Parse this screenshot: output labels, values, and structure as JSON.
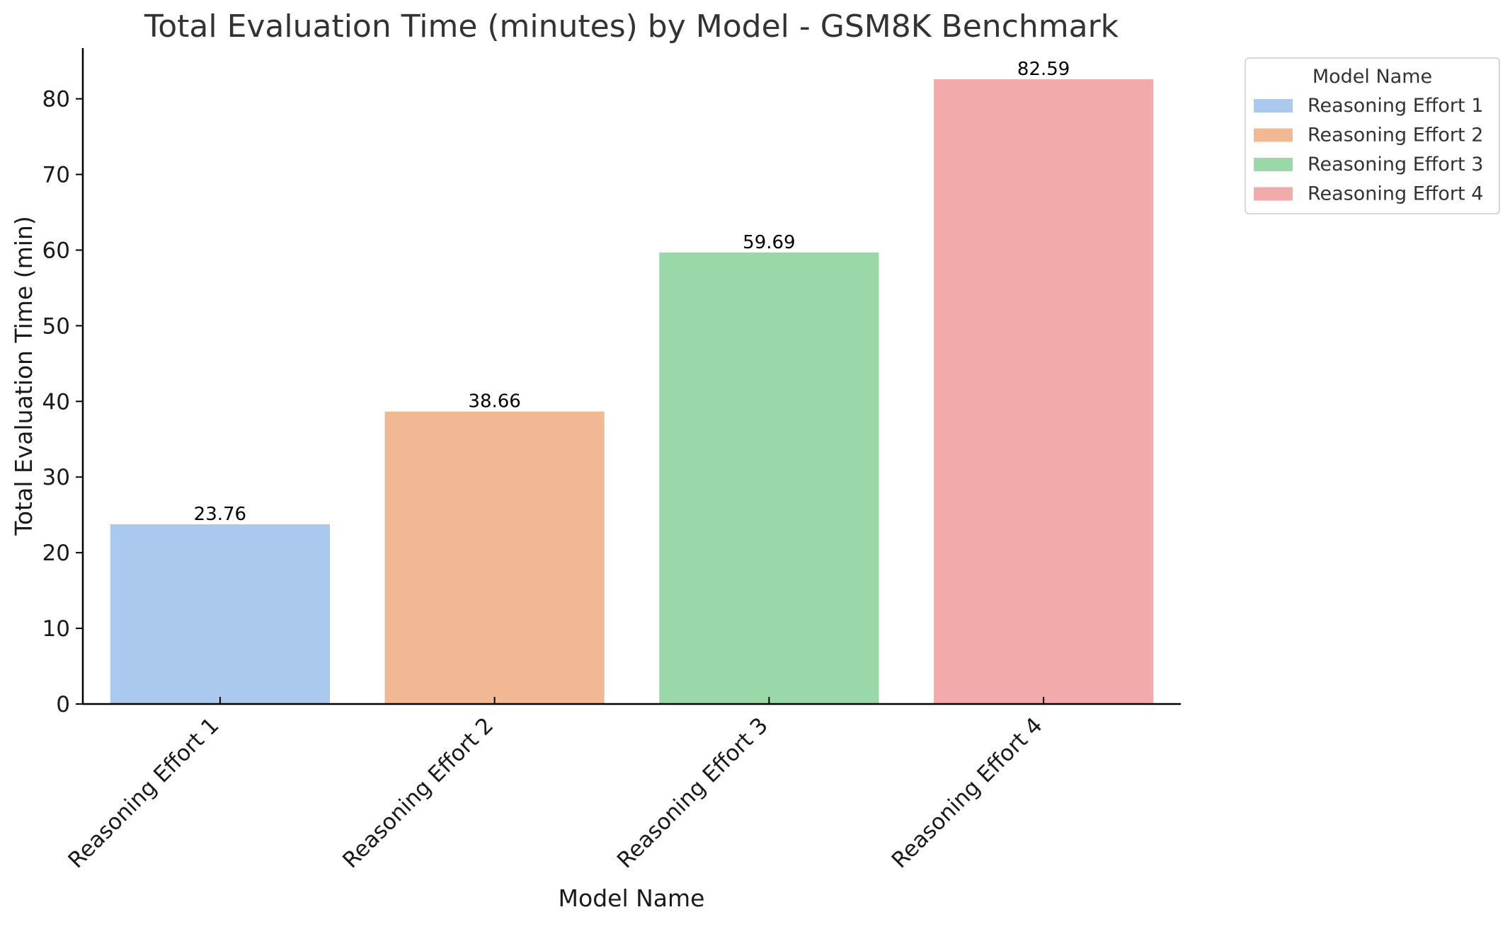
{
  "chart_data": {
    "type": "bar",
    "title": "Total Evaluation Time (minutes) by Model - GSM8K Benchmark",
    "xlabel": "Model Name",
    "ylabel": "Total Evaluation Time (min)",
    "categories": [
      "Reasoning Effort 1",
      "Reasoning Effort 2",
      "Reasoning Effort 3",
      "Reasoning Effort 4"
    ],
    "values": [
      23.76,
      38.66,
      59.69,
      82.59
    ],
    "value_labels": [
      "23.76",
      "38.66",
      "59.69",
      "82.59"
    ],
    "colors": [
      "#abc9ee",
      "#f0b893",
      "#9ad9a7",
      "#f2abaa"
    ],
    "ylim": [
      0,
      86.7
    ],
    "yticks": [
      0,
      10,
      20,
      30,
      40,
      50,
      60,
      70,
      80
    ],
    "grid": false,
    "legend": {
      "title": "Model Name",
      "placement": "outside-top-right",
      "entries": [
        "Reasoning Effort 1",
        "Reasoning Effort 2",
        "Reasoning Effort 3",
        "Reasoning Effort 4"
      ]
    },
    "text_color": "#333333",
    "axis_color": "#000000"
  }
}
